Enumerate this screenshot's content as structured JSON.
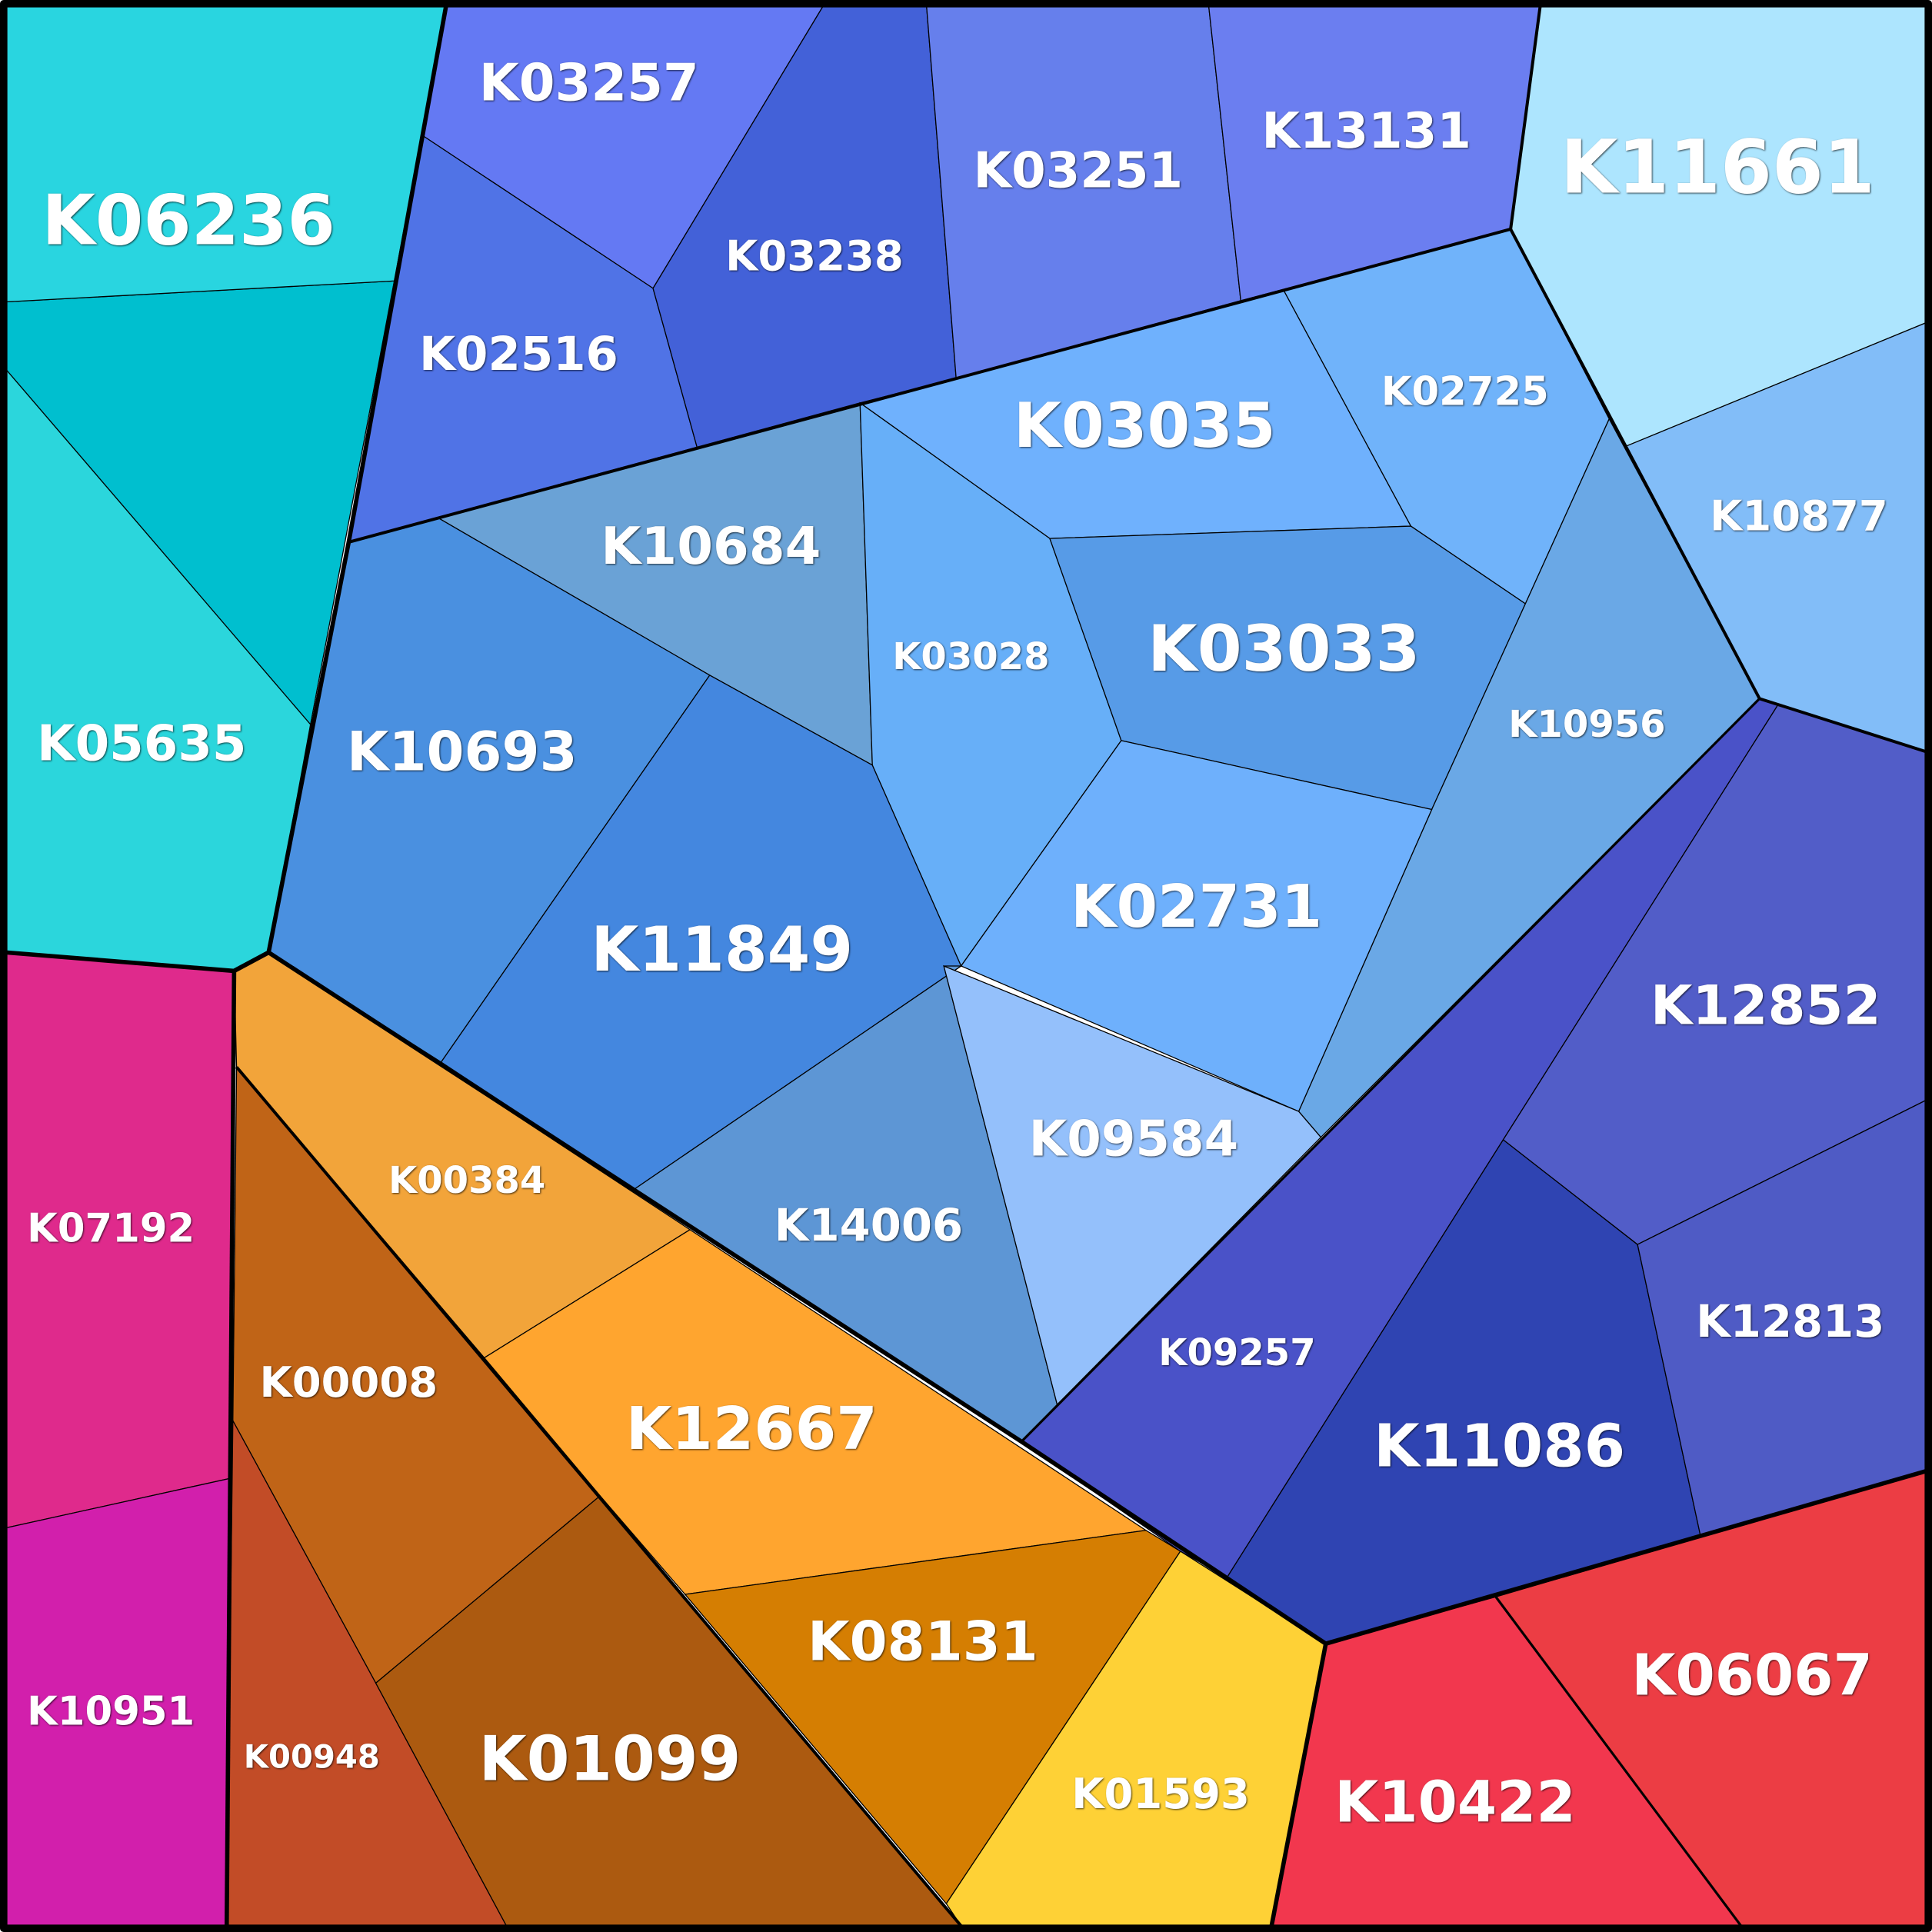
{
  "cells": [
    {
      "label": "K06236"
    },
    {
      "label": "K05635"
    },
    {
      "label": "K03257"
    },
    {
      "label": "K02516"
    },
    {
      "label": "K03238"
    },
    {
      "label": "K03251"
    },
    {
      "label": "K13131"
    },
    {
      "label": "K11661"
    },
    {
      "label": "K10877"
    },
    {
      "label": "K02725"
    },
    {
      "label": "K03035"
    },
    {
      "label": "K10684"
    },
    {
      "label": "K10693"
    },
    {
      "label": "K03028"
    },
    {
      "label": "K03033"
    },
    {
      "label": "K10956"
    },
    {
      "label": "K11849"
    },
    {
      "label": "K02731"
    },
    {
      "label": "K14006"
    },
    {
      "label": "K09584"
    },
    {
      "label": "K00384"
    },
    {
      "label": "K12667"
    },
    {
      "label": "K00008"
    },
    {
      "label": "K00948"
    },
    {
      "label": "K01099"
    },
    {
      "label": "K08131"
    },
    {
      "label": "K01593"
    },
    {
      "label": "K10422"
    },
    {
      "label": "K06067"
    },
    {
      "label": "K07192"
    },
    {
      "label": "K10951"
    },
    {
      "label": "K09257"
    },
    {
      "label": "K11086"
    },
    {
      "label": "K12852"
    },
    {
      "label": "K12813"
    }
  ]
}
